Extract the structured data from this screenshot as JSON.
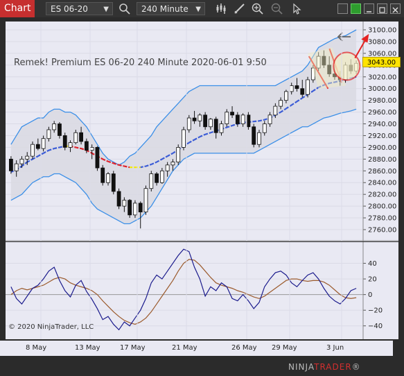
{
  "toolbar": {
    "tab_label": "Chart",
    "instrument": "ES 06-20",
    "interval": "240 Minute"
  },
  "chart_title": "Remek!  Premium  ES 06-20  240 Minute  2020-06-01 9:50",
  "last_price": "3043.00",
  "copyright": "© 2020 NinjaTrader, LLC",
  "logo": {
    "part1": "NINJA",
    "part2": "TRADER",
    "suffix": "®"
  },
  "price_axis_labels": [
    "3100.00",
    "3080.00",
    "3060.00",
    "3040.00",
    "3020.00",
    "3000.00",
    "2980.00",
    "2960.00",
    "2940.00",
    "2920.00",
    "2900.00",
    "2880.00",
    "2860.00",
    "2840.00",
    "2820.00",
    "2800.00",
    "2780.00",
    "2760.00"
  ],
  "osc_axis_labels": [
    "40",
    "20",
    "0",
    "−20",
    "−40"
  ],
  "date_labels": [
    "8 May",
    "13 May",
    "17 May",
    "21 May",
    "26 May",
    "29 May",
    "3 Jun"
  ],
  "colors": {
    "accent": "#c62f2f",
    "up_candle": "#ffffff",
    "down_candle": "#111111",
    "band": "#3b8fe8",
    "midline_up": "#3a5bd6",
    "midline_down": "#e0202a",
    "midline_neutral": "#f5e800",
    "osc_fast": "#1a1a8c",
    "osc_slow": "#9b5a2c",
    "annotation": "#e52222"
  },
  "chart_data": {
    "type": "candlestick",
    "title": "Remek!  Premium  ES 06-20  240 Minute  2020-06-01 9:50",
    "y_range": [
      2750,
      3110
    ],
    "osc_range": [
      -50,
      60
    ],
    "last_price": 3043,
    "x_labels": [
      "8 May",
      "13 May",
      "17 May",
      "21 May",
      "26 May",
      "29 May",
      "3 Jun"
    ],
    "grid": true,
    "bars": [
      [
        2880,
        2885,
        2855,
        2860
      ],
      [
        2860,
        2878,
        2850,
        2872
      ],
      [
        2872,
        2885,
        2865,
        2880
      ],
      [
        2880,
        2892,
        2870,
        2885
      ],
      [
        2885,
        2910,
        2880,
        2905
      ],
      [
        2905,
        2915,
        2895,
        2898
      ],
      [
        2898,
        2920,
        2893,
        2915
      ],
      [
        2915,
        2935,
        2910,
        2930
      ],
      [
        2930,
        2945,
        2925,
        2940
      ],
      [
        2940,
        2943,
        2915,
        2920
      ],
      [
        2920,
        2925,
        2895,
        2900
      ],
      [
        2900,
        2912,
        2892,
        2908
      ],
      [
        2908,
        2930,
        2905,
        2925
      ],
      [
        2925,
        2935,
        2905,
        2910
      ],
      [
        2910,
        2915,
        2890,
        2895
      ],
      [
        2895,
        2905,
        2880,
        2900
      ],
      [
        2900,
        2902,
        2860,
        2865
      ],
      [
        2865,
        2870,
        2835,
        2840
      ],
      [
        2840,
        2858,
        2835,
        2855
      ],
      [
        2855,
        2860,
        2820,
        2825
      ],
      [
        2825,
        2830,
        2795,
        2800
      ],
      [
        2800,
        2815,
        2790,
        2810
      ],
      [
        2810,
        2812,
        2780,
        2785
      ],
      [
        2785,
        2810,
        2780,
        2805
      ],
      [
        2805,
        2808,
        2762,
        2790
      ],
      [
        2790,
        2835,
        2785,
        2830
      ],
      [
        2830,
        2860,
        2825,
        2855
      ],
      [
        2855,
        2858,
        2835,
        2840
      ],
      [
        2840,
        2865,
        2838,
        2860
      ],
      [
        2860,
        2875,
        2850,
        2870
      ],
      [
        2870,
        2880,
        2860,
        2875
      ],
      [
        2875,
        2905,
        2870,
        2900
      ],
      [
        2900,
        2935,
        2895,
        2930
      ],
      [
        2930,
        2955,
        2925,
        2950
      ],
      [
        2950,
        2962,
        2940,
        2945
      ],
      [
        2945,
        2958,
        2935,
        2955
      ],
      [
        2955,
        2960,
        2930,
        2935
      ],
      [
        2935,
        2950,
        2930,
        2948
      ],
      [
        2948,
        2952,
        2915,
        2925
      ],
      [
        2925,
        2945,
        2920,
        2940
      ],
      [
        2940,
        2965,
        2935,
        2960
      ],
      [
        2960,
        2970,
        2950,
        2955
      ],
      [
        2955,
        2960,
        2935,
        2940
      ],
      [
        2940,
        2958,
        2935,
        2955
      ],
      [
        2955,
        2960,
        2930,
        2935
      ],
      [
        2935,
        2940,
        2900,
        2905
      ],
      [
        2905,
        2930,
        2900,
        2925
      ],
      [
        2925,
        2945,
        2920,
        2940
      ],
      [
        2940,
        2960,
        2935,
        2955
      ],
      [
        2955,
        2975,
        2950,
        2970
      ],
      [
        2970,
        2985,
        2965,
        2980
      ],
      [
        2980,
        2998,
        2975,
        2995
      ],
      [
        2995,
        3010,
        2990,
        3005
      ],
      [
        3005,
        3018,
        2995,
        3000
      ],
      [
        3000,
        3015,
        2985,
        2990
      ],
      [
        2990,
        3020,
        2985,
        3015
      ],
      [
        3015,
        3040,
        3010,
        3035
      ],
      [
        3035,
        3062,
        3030,
        3055
      ],
      [
        3055,
        3065,
        3035,
        3040
      ],
      [
        3040,
        3055,
        3020,
        3025
      ],
      [
        3025,
        3040,
        3015,
        3020
      ],
      [
        3020,
        3030,
        3005,
        3015
      ],
      [
        3015,
        3045,
        3010,
        3040
      ],
      [
        3040,
        3050,
        3025,
        3030
      ],
      [
        3030,
        3048,
        3025,
        3043
      ]
    ],
    "series": [
      {
        "name": "",
        "role": "upper-band",
        "values": [
          2905,
          2920,
          2935,
          2940,
          2945,
          2950,
          2950,
          2960,
          2965,
          2965,
          2960,
          2960,
          2955,
          2945,
          2935,
          2920,
          2905,
          2890,
          2880,
          2875,
          2870,
          2875,
          2885,
          2890,
          2900,
          2910,
          2920,
          2935,
          2945,
          2955,
          2965,
          2975,
          2985,
          2995,
          3000,
          3005,
          3005,
          3005,
          3005,
          3005,
          3005,
          3005,
          3005,
          3005,
          3005,
          3005,
          3005,
          3005,
          3005,
          3005,
          3010,
          3015,
          3020,
          3025,
          3030,
          3040,
          3055,
          3070,
          3075,
          3080,
          3085,
          3088,
          3090,
          3095,
          3100
        ]
      },
      {
        "name": "",
        "role": "lower-band",
        "values": [
          2810,
          2815,
          2820,
          2830,
          2840,
          2845,
          2850,
          2850,
          2855,
          2855,
          2850,
          2845,
          2840,
          2830,
          2820,
          2805,
          2795,
          2790,
          2785,
          2780,
          2775,
          2770,
          2770,
          2775,
          2780,
          2790,
          2800,
          2815,
          2830,
          2845,
          2860,
          2870,
          2880,
          2885,
          2890,
          2890,
          2890,
          2890,
          2890,
          2890,
          2890,
          2890,
          2890,
          2890,
          2890,
          2890,
          2895,
          2900,
          2905,
          2910,
          2915,
          2920,
          2925,
          2930,
          2935,
          2935,
          2940,
          2945,
          2950,
          2952,
          2955,
          2958,
          2960,
          2962,
          2965
        ]
      },
      {
        "name": "",
        "role": "midline",
        "values": [
          2858,
          2862,
          2868,
          2875,
          2880,
          2885,
          2890,
          2895,
          2898,
          2900,
          2902,
          2902,
          2900,
          2898,
          2895,
          2890,
          2885,
          2880,
          2876,
          2873,
          2870,
          2868,
          2866,
          2866,
          2866,
          2868,
          2871,
          2875,
          2880,
          2885,
          2890,
          2896,
          2902,
          2908,
          2913,
          2918,
          2922,
          2925,
          2928,
          2931,
          2934,
          2937,
          2940,
          2942,
          2943,
          2944,
          2945,
          2947,
          2950,
          2955,
          2960,
          2966,
          2972,
          2978,
          2984,
          2990,
          2996,
          3002,
          3006,
          3009,
          3011,
          3013,
          3015,
          3018,
          3020
        ]
      },
      {
        "name": "",
        "role": "osc-fast",
        "values": [
          10,
          -5,
          -12,
          -2,
          8,
          12,
          20,
          30,
          35,
          18,
          5,
          -3,
          12,
          18,
          4,
          -6,
          -18,
          -32,
          -28,
          -38,
          -45,
          -35,
          -40,
          -30,
          -20,
          -5,
          15,
          25,
          20,
          30,
          40,
          50,
          58,
          55,
          35,
          20,
          -2,
          10,
          5,
          15,
          10,
          -5,
          -8,
          0,
          -8,
          -18,
          -10,
          10,
          20,
          28,
          30,
          25,
          15,
          10,
          18,
          25,
          28,
          20,
          8,
          -2,
          -8,
          -12,
          -5,
          5,
          8
        ]
      },
      {
        "name": "",
        "role": "osc-slow",
        "values": [
          0,
          5,
          8,
          6,
          8,
          10,
          12,
          16,
          20,
          22,
          20,
          15,
          12,
          10,
          8,
          5,
          0,
          -8,
          -15,
          -22,
          -28,
          -33,
          -36,
          -38,
          -35,
          -30,
          -22,
          -12,
          -2,
          8,
          18,
          30,
          40,
          45,
          44,
          38,
          30,
          22,
          15,
          12,
          10,
          8,
          5,
          3,
          0,
          -3,
          -5,
          -2,
          3,
          8,
          13,
          18,
          20,
          20,
          18,
          17,
          18,
          18,
          16,
          12,
          6,
          0,
          -4,
          -5,
          -4
        ]
      }
    ]
  }
}
